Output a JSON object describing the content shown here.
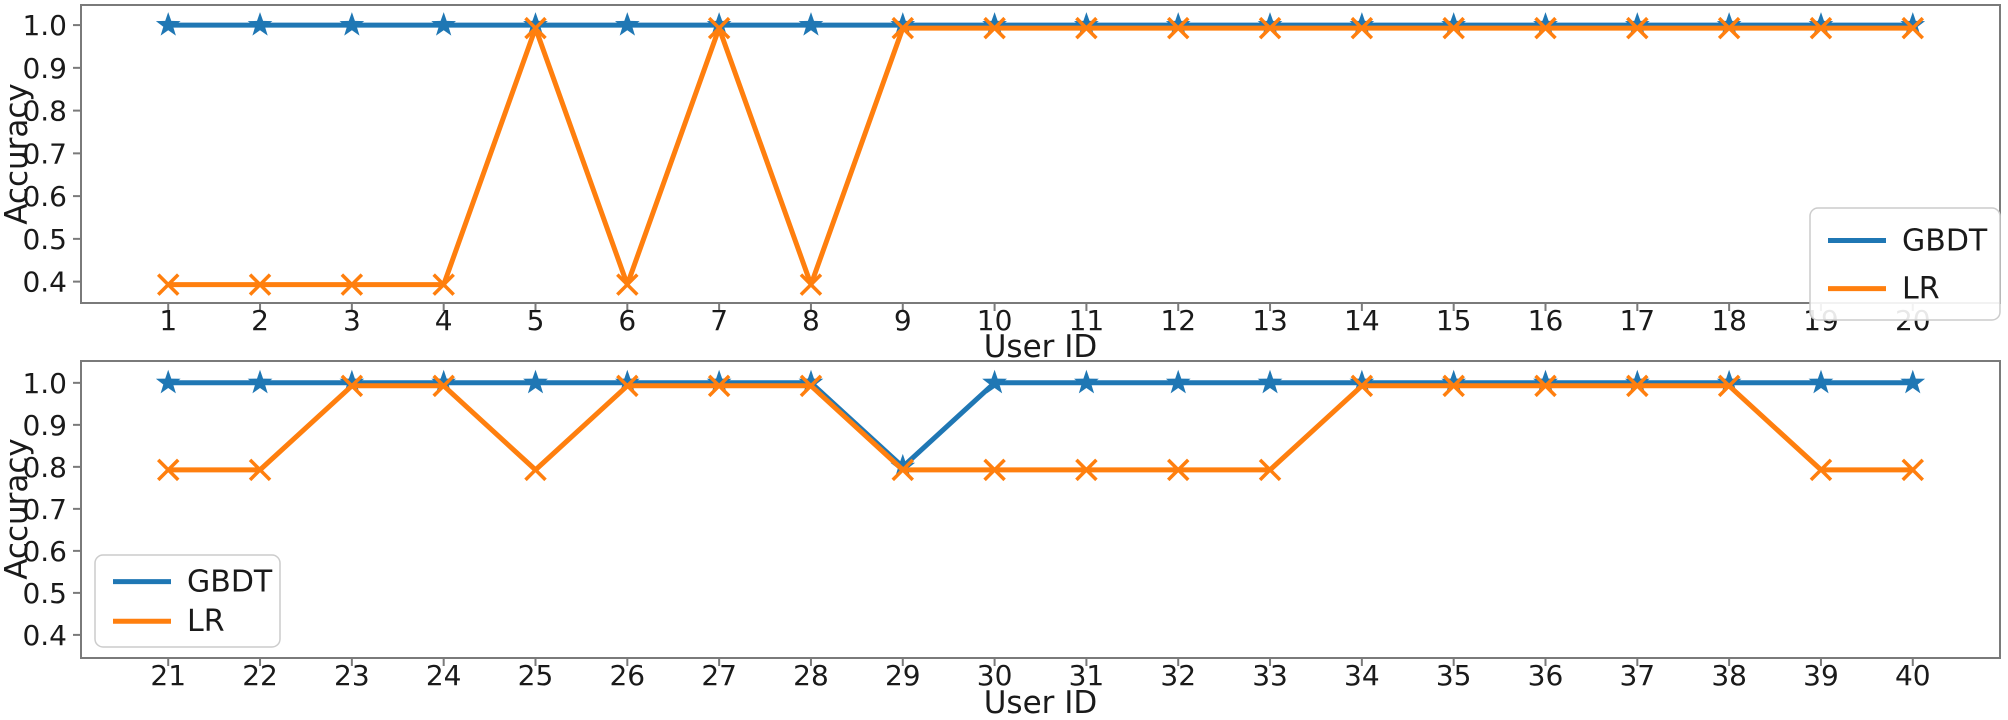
{
  "figure": {
    "ylabel": "Accuracy",
    "xlabel": "User ID",
    "series_colors": {
      "GBDT": "#1f77b4",
      "LR": "#ff7f0e"
    },
    "axis_color": "#7a7a7a",
    "legend_entries": [
      "GBDT",
      "LR"
    ]
  },
  "chart_data": [
    {
      "type": "line",
      "title": "",
      "xlabel": "User ID",
      "ylabel": "Accuracy",
      "x": [
        1,
        2,
        3,
        4,
        5,
        6,
        7,
        8,
        9,
        10,
        11,
        12,
        13,
        14,
        15,
        16,
        17,
        18,
        19,
        20
      ],
      "xticks": [
        1,
        2,
        3,
        4,
        5,
        6,
        7,
        8,
        9,
        10,
        11,
        12,
        13,
        14,
        15,
        16,
        17,
        18,
        19,
        20
      ],
      "yticks": [
        0.4,
        0.5,
        0.6,
        0.7,
        0.8,
        0.9,
        1.0
      ],
      "ylim": [
        0.35,
        1.047
      ],
      "grid": false,
      "legend_position": "right-middle",
      "series": [
        {
          "name": "GBDT",
          "color": "#1f77b4",
          "marker": "star",
          "values": [
            1.0,
            1.0,
            1.0,
            1.0,
            1.0,
            1.0,
            1.0,
            1.0,
            1.0,
            1.0,
            1.0,
            1.0,
            1.0,
            1.0,
            1.0,
            1.0,
            1.0,
            1.0,
            1.0,
            1.0
          ]
        },
        {
          "name": "LR",
          "color": "#ff7f0e",
          "marker": "x",
          "values": [
            0.4,
            0.4,
            0.4,
            0.4,
            1.0,
            0.4,
            1.0,
            0.4,
            1.0,
            1.0,
            1.0,
            1.0,
            1.0,
            1.0,
            1.0,
            1.0,
            1.0,
            1.0,
            1.0,
            1.0
          ]
        }
      ]
    },
    {
      "type": "line",
      "title": "",
      "xlabel": "User ID",
      "ylabel": "Accuracy",
      "x": [
        21,
        22,
        23,
        24,
        25,
        26,
        27,
        28,
        29,
        30,
        31,
        32,
        33,
        34,
        35,
        36,
        37,
        38,
        39,
        40
      ],
      "xticks": [
        21,
        22,
        23,
        24,
        25,
        26,
        27,
        28,
        29,
        30,
        31,
        32,
        33,
        34,
        35,
        36,
        37,
        38,
        39,
        40
      ],
      "yticks": [
        0.4,
        0.5,
        0.6,
        0.7,
        0.8,
        0.9,
        1.0
      ],
      "ylim": [
        0.345,
        1.052
      ],
      "grid": false,
      "legend_position": "left-bottom",
      "series": [
        {
          "name": "GBDT",
          "color": "#1f77b4",
          "marker": "star",
          "values": [
            1.0,
            1.0,
            1.0,
            1.0,
            1.0,
            1.0,
            1.0,
            1.0,
            0.8,
            1.0,
            1.0,
            1.0,
            1.0,
            1.0,
            1.0,
            1.0,
            1.0,
            1.0,
            1.0,
            1.0
          ]
        },
        {
          "name": "LR",
          "color": "#ff7f0e",
          "marker": "x",
          "values": [
            0.8,
            0.8,
            1.0,
            1.0,
            0.8,
            1.0,
            1.0,
            1.0,
            0.8,
            0.8,
            0.8,
            0.8,
            0.8,
            1.0,
            1.0,
            1.0,
            1.0,
            1.0,
            0.8,
            0.8
          ]
        }
      ]
    }
  ]
}
